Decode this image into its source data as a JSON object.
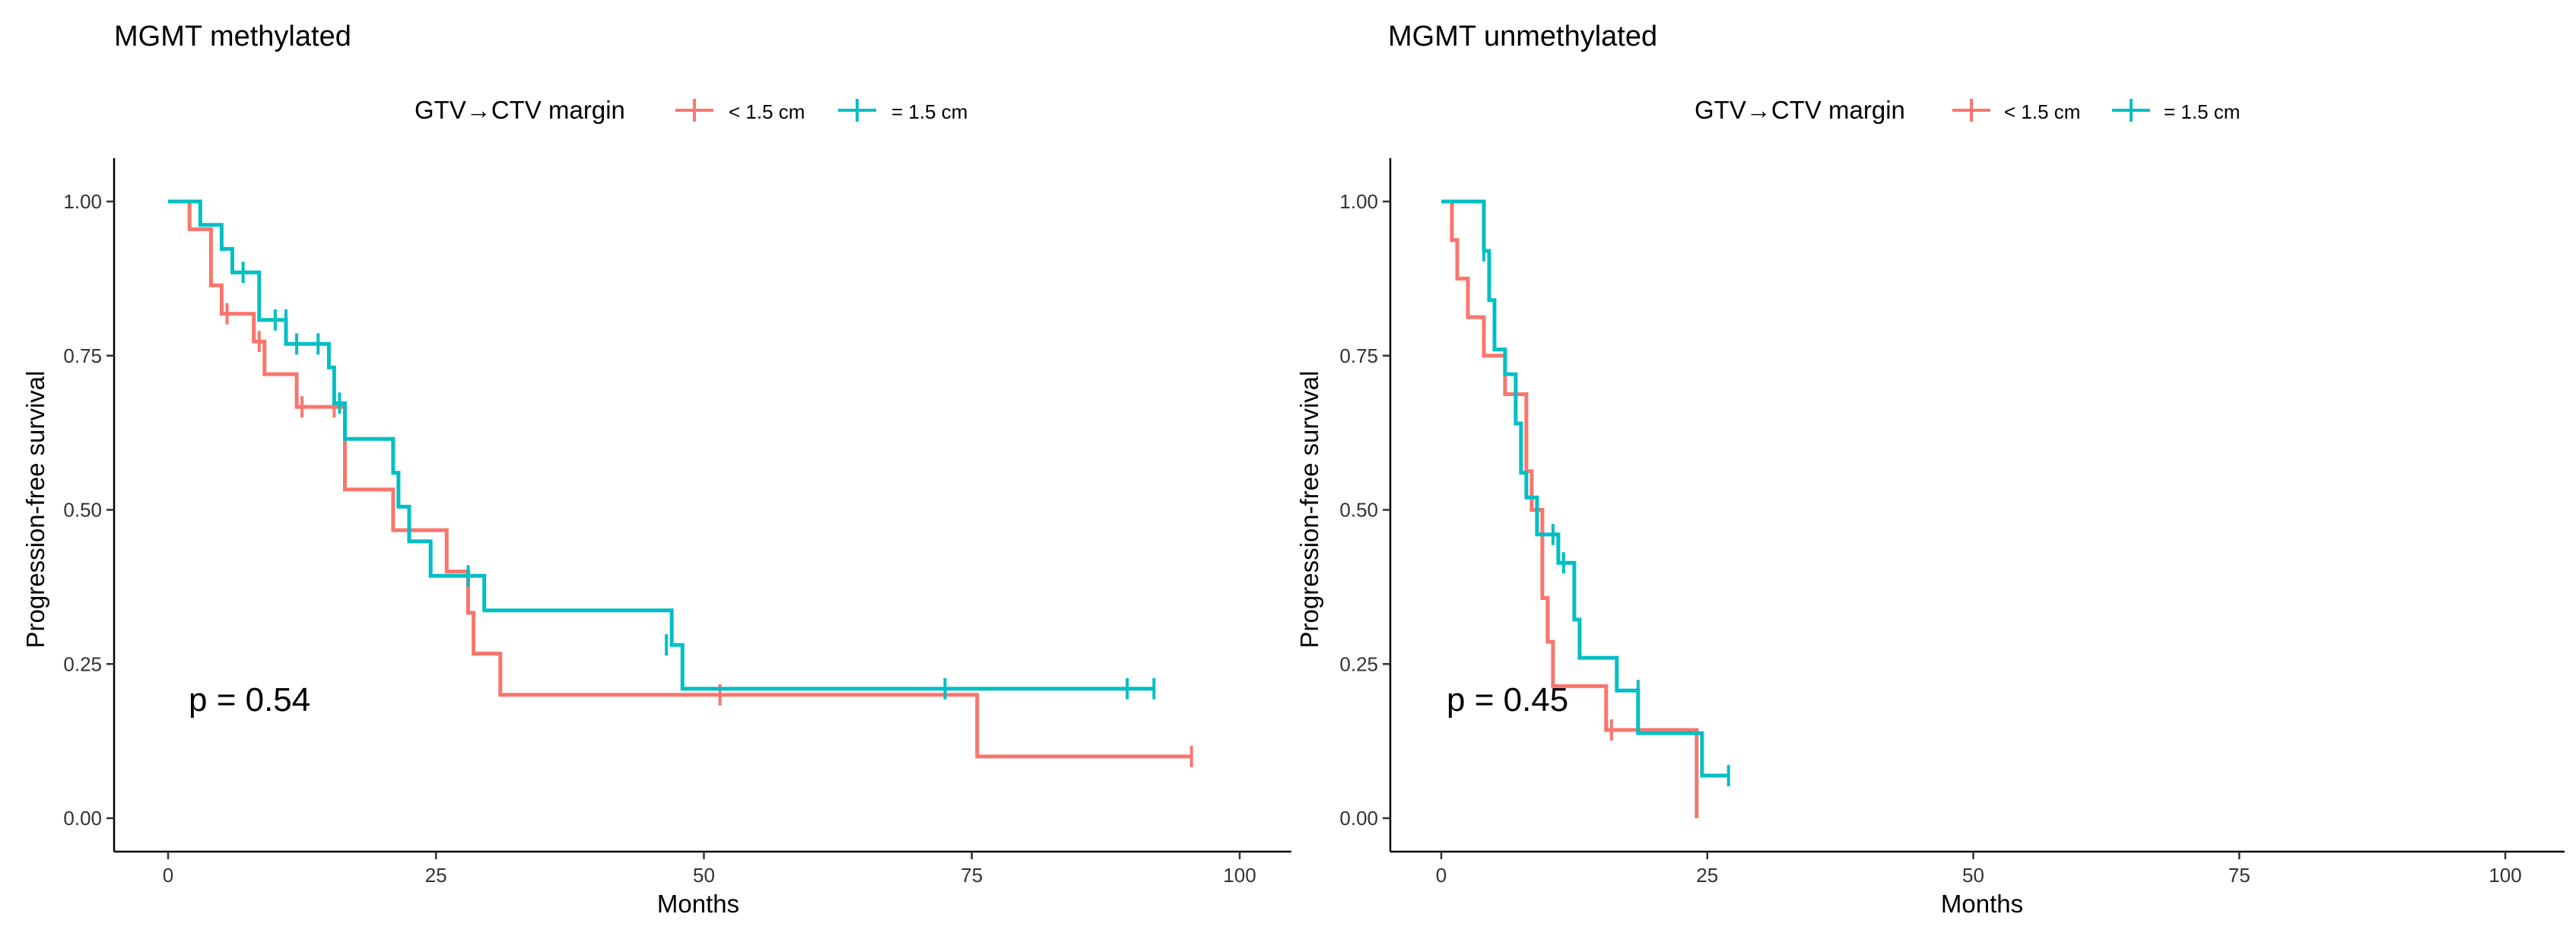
{
  "colors": {
    "lt": "#F8766D",
    "eq": "#00BFC4"
  },
  "chart_data": [
    {
      "type": "line",
      "title": "MGMT methylated",
      "legend_title": "GTV→CTV margin",
      "legend_position": "top",
      "xlabel": "Months",
      "ylabel": "Progression-free survival",
      "xlim": [
        0,
        100
      ],
      "ylim": [
        0,
        1
      ],
      "xticks": [
        "0",
        "25",
        "50",
        "75",
        "100"
      ],
      "yticks": [
        "0.00",
        "0.25",
        "0.50",
        "0.75",
        "1.00"
      ],
      "annotation": "p = 0.54",
      "series": [
        {
          "name": "< 1.5 cm",
          "color_key": "lt",
          "steps": [
            [
              0,
              1.0
            ],
            [
              2,
              1.0
            ],
            [
              2,
              0.955
            ],
            [
              4,
              0.955
            ],
            [
              4,
              0.864
            ],
            [
              5,
              0.864
            ],
            [
              5,
              0.818
            ],
            [
              8,
              0.818
            ],
            [
              8,
              0.773
            ],
            [
              9,
              0.773
            ],
            [
              9,
              0.72
            ],
            [
              12,
              0.72
            ],
            [
              12,
              0.667
            ],
            [
              16.5,
              0.667
            ],
            [
              16.5,
              0.533
            ],
            [
              21,
              0.533
            ],
            [
              21,
              0.467
            ],
            [
              26,
              0.467
            ],
            [
              26,
              0.4
            ],
            [
              28,
              0.4
            ],
            [
              28,
              0.333
            ],
            [
              28.5,
              0.333
            ],
            [
              28.5,
              0.267
            ],
            [
              31,
              0.267
            ],
            [
              31,
              0.2
            ],
            [
              75.5,
              0.2
            ],
            [
              75.5,
              0.1
            ],
            [
              95.5,
              0.1
            ]
          ],
          "censors": [
            [
              5.5,
              0.818
            ],
            [
              8.5,
              0.773
            ],
            [
              12.5,
              0.667
            ],
            [
              15.5,
              0.667
            ],
            [
              51.5,
              0.2
            ],
            [
              95.5,
              0.1
            ]
          ]
        },
        {
          "name": "= 1.5 cm",
          "color_key": "eq",
          "steps": [
            [
              0,
              1.0
            ],
            [
              3,
              1.0
            ],
            [
              3,
              0.962
            ],
            [
              5,
              0.962
            ],
            [
              5,
              0.923
            ],
            [
              6,
              0.923
            ],
            [
              6,
              0.885
            ],
            [
              8.5,
              0.885
            ],
            [
              8.5,
              0.808
            ],
            [
              11,
              0.808
            ],
            [
              11,
              0.769
            ],
            [
              15,
              0.769
            ],
            [
              15,
              0.731
            ],
            [
              15.5,
              0.731
            ],
            [
              15.5,
              0.673
            ],
            [
              16.5,
              0.673
            ],
            [
              16.5,
              0.615
            ],
            [
              21,
              0.615
            ],
            [
              21,
              0.56
            ],
            [
              21.5,
              0.56
            ],
            [
              21.5,
              0.505
            ],
            [
              22.5,
              0.505
            ],
            [
              22.5,
              0.449
            ],
            [
              24.5,
              0.449
            ],
            [
              24.5,
              0.393
            ],
            [
              29.5,
              0.393
            ],
            [
              29.5,
              0.337
            ],
            [
              47,
              0.337
            ],
            [
              47,
              0.281
            ],
            [
              48,
              0.281
            ],
            [
              48,
              0.21
            ],
            [
              92,
              0.21
            ]
          ],
          "censors": [
            [
              7,
              0.885
            ],
            [
              10,
              0.808
            ],
            [
              11,
              0.808
            ],
            [
              12,
              0.769
            ],
            [
              14,
              0.769
            ],
            [
              16,
              0.673
            ],
            [
              28,
              0.393
            ],
            [
              46.5,
              0.281
            ],
            [
              72.5,
              0.21
            ],
            [
              89.5,
              0.21
            ],
            [
              92,
              0.21
            ]
          ]
        }
      ]
    },
    {
      "type": "line",
      "title": "MGMT unmethylated",
      "legend_title": "GTV→CTV margin",
      "legend_position": "top",
      "xlabel": "Months",
      "ylabel": "Progression-free survival",
      "xlim": [
        0,
        100
      ],
      "ylim": [
        0,
        1
      ],
      "xticks": [
        "0",
        "25",
        "50",
        "75",
        "100"
      ],
      "yticks": [
        "0.00",
        "0.25",
        "0.50",
        "0.75",
        "1.00"
      ],
      "annotation": "p = 0.45",
      "series": [
        {
          "name": "< 1.5 cm",
          "color_key": "lt",
          "steps": [
            [
              0,
              1.0
            ],
            [
              1,
              1.0
            ],
            [
              1,
              0.9375
            ],
            [
              1.5,
              0.9375
            ],
            [
              1.5,
              0.875
            ],
            [
              2.5,
              0.875
            ],
            [
              2.5,
              0.8125
            ],
            [
              4,
              0.8125
            ],
            [
              4,
              0.75
            ],
            [
              6,
              0.75
            ],
            [
              6,
              0.6875
            ],
            [
              8,
              0.6875
            ],
            [
              8,
              0.5625
            ],
            [
              8.5,
              0.5625
            ],
            [
              8.5,
              0.5
            ],
            [
              9.5,
              0.5
            ],
            [
              9.5,
              0.357
            ],
            [
              10,
              0.357
            ],
            [
              10,
              0.286
            ],
            [
              10.5,
              0.286
            ],
            [
              10.5,
              0.214
            ],
            [
              15.5,
              0.214
            ],
            [
              15.5,
              0.143
            ],
            [
              24,
              0.143
            ],
            [
              24,
              0.0
            ]
          ],
          "censors": [
            [
              16,
              0.143
            ]
          ]
        },
        {
          "name": "= 1.5 cm",
          "color_key": "eq",
          "steps": [
            [
              0,
              1.0
            ],
            [
              4,
              1.0
            ],
            [
              4,
              0.92
            ],
            [
              4.5,
              0.92
            ],
            [
              4.5,
              0.84
            ],
            [
              5,
              0.84
            ],
            [
              5,
              0.76
            ],
            [
              6,
              0.76
            ],
            [
              6,
              0.72
            ],
            [
              7,
              0.72
            ],
            [
              7,
              0.64
            ],
            [
              7.5,
              0.64
            ],
            [
              7.5,
              0.56
            ],
            [
              8,
              0.56
            ],
            [
              8,
              0.52
            ],
            [
              9,
              0.52
            ],
            [
              9,
              0.46
            ],
            [
              11,
              0.46
            ],
            [
              11,
              0.414
            ],
            [
              12.5,
              0.414
            ],
            [
              12.5,
              0.322
            ],
            [
              13,
              0.322
            ],
            [
              13,
              0.26
            ],
            [
              16.5,
              0.26
            ],
            [
              16.5,
              0.207
            ],
            [
              18.5,
              0.207
            ],
            [
              18.5,
              0.138
            ],
            [
              24.5,
              0.138
            ],
            [
              24.5,
              0.069
            ],
            [
              27,
              0.069
            ]
          ],
          "censors": [
            [
              4,
              0.92
            ],
            [
              10.5,
              0.46
            ],
            [
              11.5,
              0.414
            ],
            [
              18.5,
              0.207
            ],
            [
              27,
              0.069
            ]
          ]
        }
      ]
    }
  ]
}
